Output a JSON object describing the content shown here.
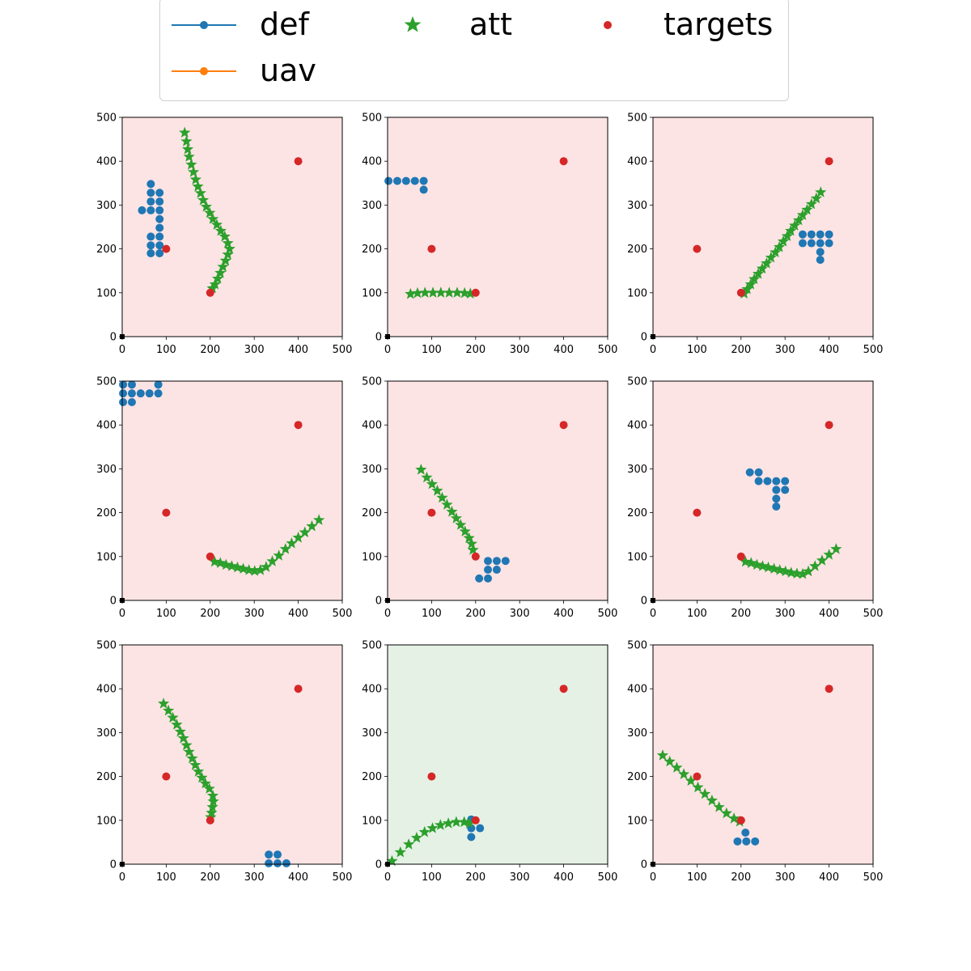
{
  "legend": {
    "items": [
      {
        "label": "def",
        "color": "#1f77b4",
        "kind": "line-marker"
      },
      {
        "label": "att",
        "color": "#2ca02c",
        "kind": "star"
      },
      {
        "label": "targets",
        "color": "#d62728",
        "kind": "dot"
      },
      {
        "label": "uav",
        "color": "#ff7f0e",
        "kind": "line-marker"
      }
    ]
  },
  "chart_data": [
    {
      "type": "scatter",
      "xlim": [
        0,
        500
      ],
      "ylim": [
        0,
        500
      ],
      "background": "#fde4e4",
      "xticks": [
        "0",
        "100",
        "200",
        "300",
        "400",
        "500"
      ],
      "yticks": [
        "0",
        "100",
        "200",
        "300",
        "400",
        "500"
      ],
      "targets": [
        [
          200,
          100
        ],
        [
          100,
          200
        ],
        [
          400,
          400
        ]
      ],
      "origin": [
        0,
        0
      ],
      "def": [
        [
          65,
          348
        ],
        [
          65,
          328
        ],
        [
          65,
          308
        ],
        [
          65,
          288
        ],
        [
          45,
          288
        ],
        [
          85,
          328
        ],
        [
          85,
          308
        ],
        [
          85,
          288
        ],
        [
          85,
          268
        ],
        [
          85,
          248
        ],
        [
          85,
          228
        ],
        [
          85,
          208
        ],
        [
          85,
          190
        ],
        [
          65,
          228
        ],
        [
          65,
          208
        ],
        [
          65,
          190
        ]
      ],
      "att": [
        [
          142,
          465
        ],
        [
          146,
          445
        ],
        [
          149,
          427
        ],
        [
          152,
          410
        ],
        [
          157,
          392
        ],
        [
          162,
          375
        ],
        [
          167,
          358
        ],
        [
          172,
          342
        ],
        [
          178,
          327
        ],
        [
          184,
          311
        ],
        [
          191,
          296
        ],
        [
          199,
          282
        ],
        [
          206,
          268
        ],
        [
          215,
          255
        ],
        [
          224,
          241
        ],
        [
          233,
          228
        ],
        [
          240,
          213
        ],
        [
          244,
          200
        ],
        [
          240,
          187
        ],
        [
          235,
          173
        ],
        [
          229,
          159
        ],
        [
          223,
          145
        ],
        [
          217,
          132
        ],
        [
          211,
          119
        ],
        [
          205,
          110
        ]
      ]
    },
    {
      "type": "scatter",
      "xlim": [
        0,
        500
      ],
      "ylim": [
        0,
        500
      ],
      "background": "#fde4e4",
      "xticks": [
        "0",
        "100",
        "200",
        "300",
        "400",
        "500"
      ],
      "yticks": [
        "0",
        "100",
        "200",
        "300",
        "400",
        "500"
      ],
      "targets": [
        [
          200,
          100
        ],
        [
          100,
          200
        ],
        [
          400,
          400
        ]
      ],
      "origin": [
        0,
        0
      ],
      "def": [
        [
          2,
          355
        ],
        [
          22,
          355
        ],
        [
          42,
          355
        ],
        [
          62,
          355
        ],
        [
          82,
          355
        ],
        [
          82,
          335
        ]
      ],
      "att": [
        [
          52,
          97
        ],
        [
          68,
          99
        ],
        [
          85,
          100
        ],
        [
          103,
          100
        ],
        [
          121,
          100
        ],
        [
          140,
          100
        ],
        [
          158,
          100
        ],
        [
          175,
          99
        ],
        [
          188,
          98
        ]
      ]
    },
    {
      "type": "scatter",
      "xlim": [
        0,
        500
      ],
      "ylim": [
        0,
        500
      ],
      "background": "#fde4e4",
      "xticks": [
        "0",
        "100",
        "200",
        "300",
        "400",
        "500"
      ],
      "yticks": [
        "0",
        "100",
        "200",
        "300",
        "400",
        "500"
      ],
      "targets": [
        [
          200,
          100
        ],
        [
          100,
          200
        ],
        [
          400,
          400
        ]
      ],
      "origin": [
        0,
        0
      ],
      "def": [
        [
          340,
          233
        ],
        [
          360,
          233
        ],
        [
          380,
          233
        ],
        [
          400,
          233
        ],
        [
          340,
          213
        ],
        [
          360,
          213
        ],
        [
          380,
          213
        ],
        [
          400,
          213
        ],
        [
          380,
          193
        ],
        [
          380,
          175
        ]
      ],
      "att": [
        [
          207,
          98
        ],
        [
          214,
          108
        ],
        [
          222,
          119
        ],
        [
          230,
          131
        ],
        [
          239,
          143
        ],
        [
          248,
          155
        ],
        [
          258,
          167
        ],
        [
          268,
          180
        ],
        [
          278,
          192
        ],
        [
          287,
          204
        ],
        [
          296,
          217
        ],
        [
          305,
          229
        ],
        [
          313,
          241
        ],
        [
          322,
          253
        ],
        [
          331,
          265
        ],
        [
          340,
          277
        ],
        [
          350,
          289
        ],
        [
          360,
          302
        ],
        [
          371,
          315
        ],
        [
          381,
          329
        ]
      ]
    },
    {
      "type": "scatter",
      "xlim": [
        0,
        500
      ],
      "ylim": [
        0,
        500
      ],
      "background": "#fde4e4",
      "xticks": [
        "0",
        "100",
        "200",
        "300",
        "400",
        "500"
      ],
      "yticks": [
        "0",
        "100",
        "200",
        "300",
        "400",
        "500"
      ],
      "targets": [
        [
          200,
          100
        ],
        [
          100,
          200
        ],
        [
          400,
          400
        ]
      ],
      "origin": [
        0,
        0
      ],
      "def": [
        [
          2,
          492
        ],
        [
          22,
          492
        ],
        [
          2,
          472
        ],
        [
          22,
          472
        ],
        [
          42,
          472
        ],
        [
          62,
          472
        ],
        [
          82,
          472
        ],
        [
          82,
          492
        ],
        [
          2,
          452
        ],
        [
          22,
          452
        ]
      ],
      "att": [
        [
          210,
          88
        ],
        [
          223,
          85
        ],
        [
          236,
          81
        ],
        [
          249,
          78
        ],
        [
          262,
          75
        ],
        [
          275,
          72
        ],
        [
          288,
          69
        ],
        [
          301,
          67
        ],
        [
          314,
          69
        ],
        [
          327,
          76
        ],
        [
          341,
          89
        ],
        [
          356,
          102
        ],
        [
          371,
          117
        ],
        [
          385,
          130
        ],
        [
          400,
          143
        ],
        [
          415,
          155
        ],
        [
          431,
          169
        ],
        [
          447,
          183
        ]
      ]
    },
    {
      "type": "scatter",
      "xlim": [
        0,
        500
      ],
      "ylim": [
        0,
        500
      ],
      "background": "#fde4e4",
      "xticks": [
        "0",
        "100",
        "200",
        "300",
        "400",
        "500"
      ],
      "yticks": [
        "0",
        "100",
        "200",
        "300",
        "400",
        "500"
      ],
      "targets": [
        [
          200,
          100
        ],
        [
          100,
          200
        ],
        [
          400,
          400
        ]
      ],
      "origin": [
        0,
        0
      ],
      "def": [
        [
          228,
          90
        ],
        [
          248,
          90
        ],
        [
          268,
          90
        ],
        [
          228,
          70
        ],
        [
          248,
          70
        ],
        [
          208,
          50
        ],
        [
          228,
          50
        ]
      ],
      "att": [
        [
          76,
          298
        ],
        [
          89,
          280
        ],
        [
          101,
          265
        ],
        [
          113,
          250
        ],
        [
          124,
          234
        ],
        [
          135,
          218
        ],
        [
          146,
          202
        ],
        [
          156,
          187
        ],
        [
          166,
          172
        ],
        [
          176,
          157
        ],
        [
          185,
          142
        ],
        [
          191,
          129
        ],
        [
          194,
          115
        ]
      ]
    },
    {
      "type": "scatter",
      "xlim": [
        0,
        500
      ],
      "ylim": [
        0,
        500
      ],
      "background": "#fde4e4",
      "xticks": [
        "0",
        "100",
        "200",
        "300",
        "400",
        "500"
      ],
      "yticks": [
        "0",
        "100",
        "200",
        "300",
        "400",
        "500"
      ],
      "targets": [
        [
          200,
          100
        ],
        [
          100,
          200
        ],
        [
          400,
          400
        ]
      ],
      "origin": [
        0,
        0
      ],
      "def": [
        [
          220,
          292
        ],
        [
          240,
          292
        ],
        [
          240,
          272
        ],
        [
          260,
          272
        ],
        [
          280,
          272
        ],
        [
          300,
          272
        ],
        [
          280,
          252
        ],
        [
          300,
          252
        ],
        [
          280,
          232
        ],
        [
          280,
          214
        ]
      ],
      "att": [
        [
          210,
          88
        ],
        [
          223,
          85
        ],
        [
          236,
          81
        ],
        [
          249,
          78
        ],
        [
          262,
          75
        ],
        [
          275,
          72
        ],
        [
          288,
          69
        ],
        [
          301,
          66
        ],
        [
          314,
          63
        ],
        [
          327,
          61
        ],
        [
          340,
          60
        ],
        [
          353,
          66
        ],
        [
          368,
          78
        ],
        [
          384,
          91
        ],
        [
          400,
          104
        ],
        [
          416,
          117
        ]
      ]
    },
    {
      "type": "scatter",
      "xlim": [
        0,
        500
      ],
      "ylim": [
        0,
        500
      ],
      "background": "#fde4e4",
      "xticks": [
        "0",
        "100",
        "200",
        "300",
        "400",
        "500"
      ],
      "yticks": [
        "0",
        "100",
        "200",
        "300",
        "400",
        "500"
      ],
      "targets": [
        [
          200,
          100
        ],
        [
          100,
          200
        ],
        [
          400,
          400
        ]
      ],
      "origin": [
        0,
        0
      ],
      "def": [
        [
          333,
          22
        ],
        [
          353,
          22
        ],
        [
          333,
          2
        ],
        [
          353,
          2
        ],
        [
          373,
          2
        ]
      ],
      "att": [
        [
          94,
          366
        ],
        [
          105,
          350
        ],
        [
          115,
          334
        ],
        [
          124,
          318
        ],
        [
          132,
          302
        ],
        [
          139,
          287
        ],
        [
          146,
          271
        ],
        [
          152,
          256
        ],
        [
          159,
          241
        ],
        [
          166,
          226
        ],
        [
          173,
          211
        ],
        [
          181,
          197
        ],
        [
          189,
          184
        ],
        [
          198,
          172
        ],
        [
          206,
          156
        ],
        [
          207,
          143
        ],
        [
          205,
          130
        ],
        [
          203,
          117
        ],
        [
          201,
          107
        ]
      ]
    },
    {
      "type": "scatter",
      "xlim": [
        0,
        500
      ],
      "ylim": [
        0,
        500
      ],
      "background": "#e5f1e5",
      "xticks": [
        "0",
        "100",
        "200",
        "300",
        "400",
        "500"
      ],
      "yticks": [
        "0",
        "100",
        "200",
        "300",
        "400",
        "500"
      ],
      "targets": [
        [
          200,
          100
        ],
        [
          100,
          200
        ],
        [
          400,
          400
        ]
      ],
      "origin": [
        0,
        0
      ],
      "def": [
        [
          190,
          102
        ],
        [
          190,
          82
        ],
        [
          210,
          82
        ],
        [
          190,
          62
        ]
      ],
      "att": [
        [
          10,
          7
        ],
        [
          29,
          27
        ],
        [
          48,
          45
        ],
        [
          66,
          60
        ],
        [
          84,
          73
        ],
        [
          102,
          82
        ],
        [
          120,
          89
        ],
        [
          138,
          93
        ],
        [
          156,
          96
        ],
        [
          174,
          96
        ],
        [
          186,
          93
        ]
      ]
    },
    {
      "type": "scatter",
      "xlim": [
        0,
        500
      ],
      "ylim": [
        0,
        500
      ],
      "background": "#fde4e4",
      "xticks": [
        "0",
        "100",
        "200",
        "300",
        "400",
        "500"
      ],
      "yticks": [
        "0",
        "100",
        "200",
        "300",
        "400",
        "500"
      ],
      "targets": [
        [
          200,
          100
        ],
        [
          100,
          200
        ],
        [
          400,
          400
        ]
      ],
      "origin": [
        0,
        0
      ],
      "def": [
        [
          210,
          72
        ],
        [
          192,
          52
        ],
        [
          212,
          52
        ],
        [
          232,
          52
        ]
      ],
      "att": [
        [
          22,
          248
        ],
        [
          38,
          234
        ],
        [
          54,
          220
        ],
        [
          70,
          205
        ],
        [
          86,
          190
        ],
        [
          102,
          175
        ],
        [
          118,
          160
        ],
        [
          134,
          145
        ],
        [
          150,
          130
        ],
        [
          167,
          116
        ],
        [
          184,
          104
        ],
        [
          197,
          97
        ]
      ]
    }
  ]
}
